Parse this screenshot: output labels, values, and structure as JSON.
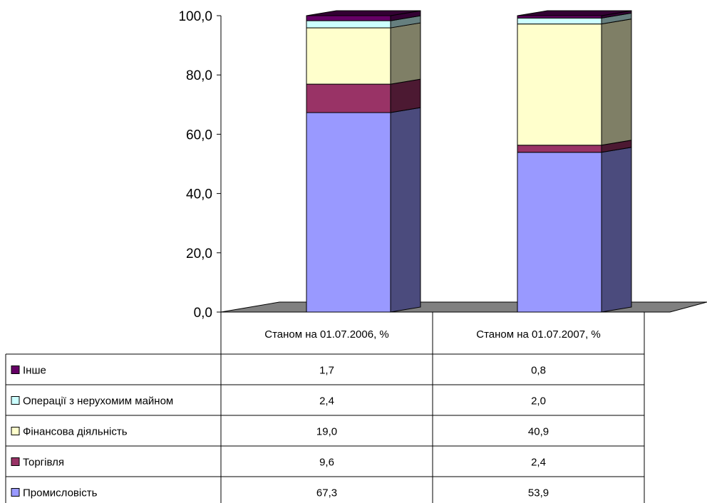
{
  "chart_data": {
    "type": "bar",
    "stacked": true,
    "three_d": true,
    "categories": [
      "Станом на 01.07.2006, %",
      "Станом на 01.07.2007, %"
    ],
    "series": [
      {
        "name": "Промисловість",
        "values": [
          67.3,
          53.9
        ],
        "value_labels": [
          "67,3",
          "53,9"
        ],
        "color": "#9999ff",
        "side_color": "#4b4b7d"
      },
      {
        "name": "Торгівля",
        "values": [
          9.6,
          2.4
        ],
        "value_labels": [
          "9,6",
          "2,4"
        ],
        "color": "#993366",
        "side_color": "#4c1932"
      },
      {
        "name": "Фінансова діяльність",
        "values": [
          19.0,
          40.9
        ],
        "value_labels": [
          "19,0",
          "40,9"
        ],
        "color": "#ffffcc",
        "side_color": "#7f7f66"
      },
      {
        "name": "Операції з нерухомим майном",
        "values": [
          2.4,
          2.0
        ],
        "value_labels": [
          "2,4",
          "2,0"
        ],
        "color": "#ccffff",
        "side_color": "#667f7f"
      },
      {
        "name": "Інше",
        "values": [
          1.7,
          0.8
        ],
        "value_labels": [
          "1,7",
          "0,8"
        ],
        "color": "#660066",
        "side_color": "#330033"
      }
    ],
    "table_row_order": [
      "Інше",
      "Операції з нерухомим майном",
      "Фінансова діяльність",
      "Торгівля",
      "Промисловість"
    ],
    "yticks": [
      "0,0",
      "20,0",
      "40,0",
      "60,0",
      "80,0",
      "100,0"
    ],
    "ylim": [
      0,
      100
    ],
    "legend_placement": "data-table",
    "grid": false
  }
}
